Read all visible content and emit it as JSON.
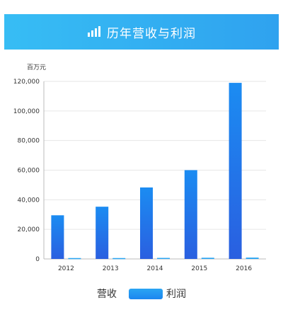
{
  "header": {
    "title": "历年营收与利润",
    "icon": "bar-chart-icon"
  },
  "unit_label": "百万元",
  "legend": {
    "revenue": "营收",
    "profit": "利润"
  },
  "colors": {
    "header": "#2fa2ef",
    "revenue": "#1f6fe8",
    "profit": "#2aa5f3",
    "grid": "#e6e6e6"
  },
  "chart_data": {
    "type": "bar",
    "categories": [
      "2012",
      "2013",
      "2014",
      "2015",
      "2016"
    ],
    "series": [
      {
        "name": "营收",
        "values": [
          29500,
          35300,
          48300,
          60000,
          119000
        ]
      },
      {
        "name": "利润",
        "values": [
          600,
          600,
          700,
          800,
          900
        ]
      }
    ],
    "ylim": [
      0,
      120000
    ],
    "yticks": [
      "0",
      "20,000",
      "40,000",
      "60,000",
      "80,000",
      "100,000",
      "120,000"
    ],
    "grid": true
  }
}
